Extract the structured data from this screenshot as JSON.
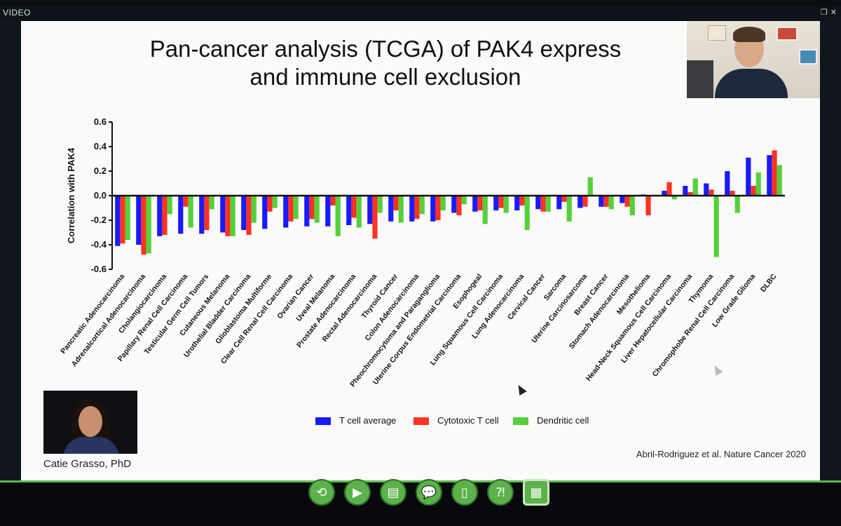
{
  "window": {
    "label": "VIDEO",
    "icons": [
      "restore-icon",
      "close-icon"
    ]
  },
  "slide": {
    "title_line1": "Pan-cancer analysis (TCGA) of PAK4 express",
    "title_line2": "and immune cell exclusion",
    "citation": "Abril-Rodriguez et al. Nature Cancer 2020"
  },
  "guest": {
    "name": "Catie Grasso, PhD"
  },
  "toolbar": {
    "buttons": [
      {
        "name": "refresh-icon",
        "glyph": "⟲"
      },
      {
        "name": "video-icon",
        "glyph": "▶"
      },
      {
        "name": "slides-icon",
        "glyph": "▤"
      },
      {
        "name": "chat-icon",
        "glyph": "💬"
      },
      {
        "name": "document-icon",
        "glyph": "▯"
      },
      {
        "name": "qa-icon",
        "glyph": "⁈"
      },
      {
        "name": "layout-icon",
        "glyph": "▦"
      }
    ]
  },
  "chart_data": {
    "type": "bar",
    "ylabel": "Correlation with PAK4",
    "ylim": [
      -0.6,
      0.6
    ],
    "yticks": [
      "0.6",
      "0.4",
      "0.2",
      "0.0",
      "-0.2",
      "-0.4",
      "-0.6"
    ],
    "categories": [
      "Pancreatic Adenocarcinoma",
      "Adrenalcortical Adenocarcinoma",
      "Cholangiocarcinoma",
      "Papillary Renal Cell Carcinoma",
      "Testicular Germ Cell Tumors",
      "Cutaneous Melanoma",
      "Urothelial Bladder Carcinoma",
      "Glioblastoma Multiforme",
      "Clear Cell Renal Cell Carcinoma",
      "Ovarian Cancer",
      "Uveal Melanoma",
      "Prostate Adenocarcinoma",
      "Rectal Adenocarcinoma",
      "Thyroid Cancer",
      "Colon Adenocarcinoma",
      "Pheochromocytoma and Paraganglioma",
      "Uterine Corpus Endometrial Carcinoma",
      "Esophogeal",
      "Lung Squamous Cell Carcinoma",
      "Lung Adenocarcinoma",
      "Cervical Cancer",
      "Sarcoma",
      "Uterine Carcinosarcoma",
      "Breast Cancer",
      "Stomach Adenocarcinoma",
      "Mesothelioma",
      "Head-Neck Squamous Cell Carcinoma",
      "Liver Hepatocellular Carcinoma",
      "Thymoma",
      "Chromophobe Renal Cell Carcinoma",
      "Low Grade Glioma",
      "DLBC"
    ],
    "series": [
      {
        "name": "T cell average",
        "color": "#1a1aff",
        "values": [
          -0.41,
          -0.4,
          -0.33,
          -0.31,
          -0.31,
          -0.3,
          -0.28,
          -0.27,
          -0.26,
          -0.25,
          -0.25,
          -0.24,
          -0.23,
          -0.21,
          -0.21,
          -0.21,
          -0.14,
          -0.13,
          -0.12,
          -0.12,
          -0.11,
          -0.11,
          -0.1,
          -0.09,
          -0.06,
          0.01,
          0.04,
          0.08,
          0.1,
          0.2,
          0.31,
          0.33
        ]
      },
      {
        "name": "Cytotoxic T cell",
        "color": "#ff3322",
        "values": [
          -0.39,
          -0.48,
          -0.32,
          -0.09,
          -0.28,
          -0.33,
          -0.32,
          -0.13,
          -0.21,
          -0.19,
          -0.08,
          -0.18,
          -0.35,
          -0.12,
          -0.19,
          -0.2,
          -0.16,
          -0.12,
          -0.1,
          -0.08,
          -0.13,
          -0.05,
          -0.09,
          -0.09,
          -0.09,
          -0.16,
          0.11,
          0.03,
          0.05,
          0.04,
          0.08,
          0.37
        ]
      },
      {
        "name": "Dendritic cell",
        "color": "#55d03a",
        "values": [
          -0.36,
          -0.47,
          -0.15,
          -0.26,
          -0.11,
          -0.33,
          -0.22,
          -0.1,
          -0.19,
          -0.22,
          -0.33,
          -0.26,
          -0.14,
          -0.22,
          -0.15,
          -0.12,
          -0.07,
          -0.23,
          -0.14,
          -0.28,
          -0.13,
          -0.21,
          0.15,
          -0.11,
          -0.16,
          0.0,
          -0.03,
          0.14,
          -0.5,
          -0.14,
          0.19,
          0.25
        ]
      }
    ],
    "legend_position": "bottom"
  }
}
